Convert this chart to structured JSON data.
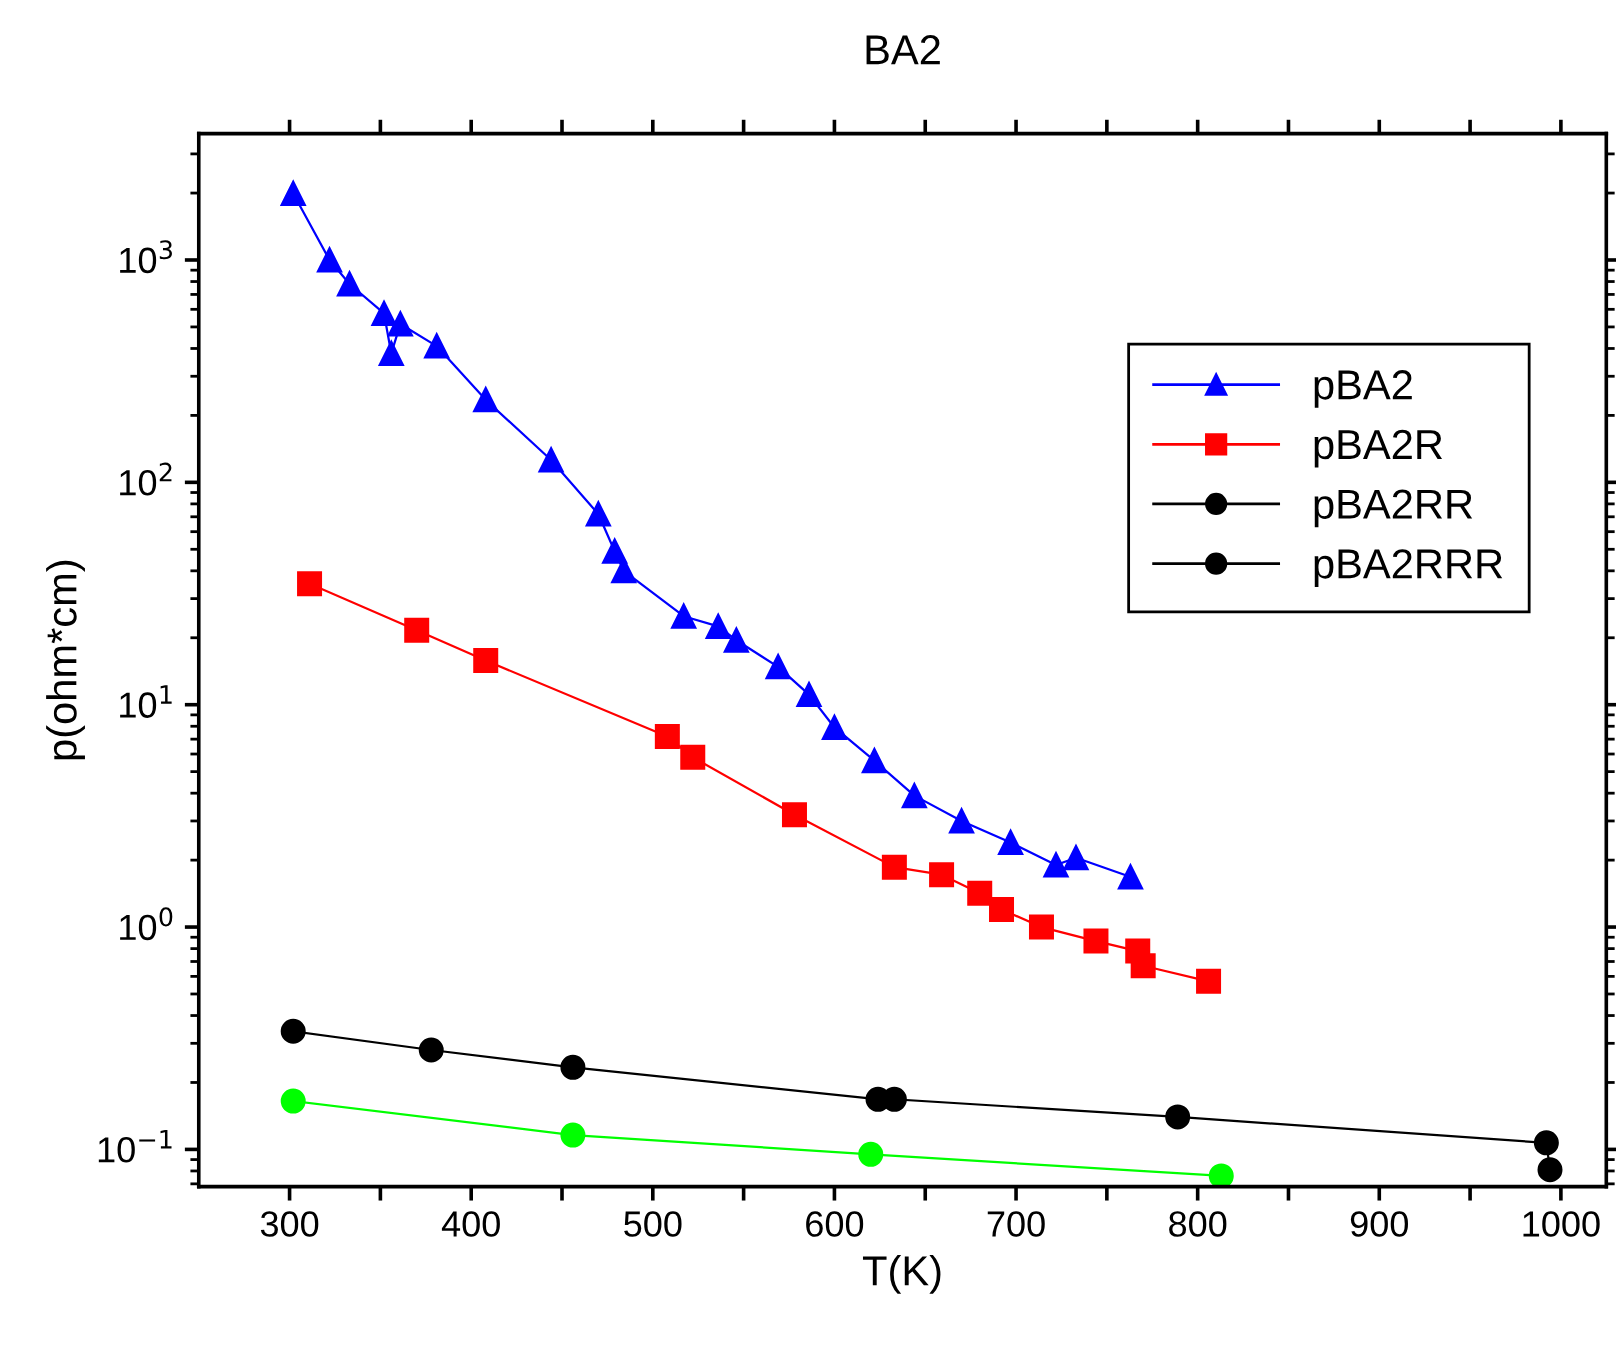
{
  "chart_data": {
    "type": "line",
    "title": "BA2",
    "xlabel": "T(K)",
    "ylabel": "p(ohm*cm)",
    "log": "y",
    "xlim": [
      250,
      1025
    ],
    "xticks": [
      300,
      {
        "value": 350,
        "label": null
      },
      400,
      {
        "value": 450,
        "label": null
      },
      500,
      {
        "value": 550,
        "label": null
      },
      600,
      {
        "value": 650,
        "label": null
      },
      700,
      {
        "value": 750,
        "label": null
      },
      800,
      {
        "value": 850,
        "label": null
      },
      900,
      {
        "value": 950,
        "label": null
      },
      1000
    ],
    "ylim": [
      0.068,
      3700
    ],
    "yticks": [
      {
        "value": 0.1,
        "label": "10$^{−1}$"
      },
      {
        "value": 1,
        "label": "10$^{0}$"
      },
      {
        "value": 10,
        "label": "10$^{1}$"
      },
      {
        "value": 100,
        "label": "10$^{2}$"
      },
      {
        "value": 1000,
        "label": "10$^{3}$"
      }
    ],
    "grid": false,
    "legend": "top right",
    "series": [
      {
        "name": "pBA2",
        "color": "#0000ff",
        "marker": "triangle",
        "x": [
          302,
          322,
          333,
          352,
          356,
          361,
          381,
          408,
          444,
          470,
          479,
          484,
          517,
          536,
          546,
          569,
          586,
          600,
          622,
          644,
          670,
          697,
          722,
          733,
          763
        ],
        "values": [
          1990,
          1000,
          780,
          575,
          380,
          515,
          410,
          235,
          126,
          72,
          49,
          40,
          25,
          22.5,
          19.5,
          14.8,
          11.1,
          7.9,
          5.6,
          3.9,
          3.0,
          2.4,
          1.9,
          2.05,
          1.68
        ]
      },
      {
        "name": "pBA2R",
        "color": "#ff0000",
        "marker": "square",
        "x": [
          311,
          370,
          408,
          508,
          522,
          578,
          633,
          659,
          680,
          692,
          714,
          744,
          767,
          770,
          806
        ],
        "values": [
          35,
          21.6,
          15.8,
          7.2,
          5.8,
          3.2,
          1.86,
          1.72,
          1.42,
          1.2,
          1.0,
          0.865,
          0.78,
          0.67,
          0.57
        ]
      },
      {
        "name": "pBA2RR",
        "color": "#000000",
        "marker": "circle",
        "x": [
          302,
          378,
          456,
          624
        ],
        "values": [
          0.34,
          0.28,
          0.234,
          0.168
        ]
      },
      {
        "name": "pBA2RRR",
        "color": "#000000",
        "marker": "circle",
        "x": [
          633,
          789,
          992,
          994
        ],
        "values": [
          0.168,
          0.14,
          0.107,
          0.081
        ]
      },
      {
        "color": "#00ff00",
        "marker": "circle",
        "x": [
          302,
          456,
          620,
          813
        ],
        "values": [
          0.165,
          0.116,
          0.095,
          0.076
        ]
      }
    ]
  }
}
